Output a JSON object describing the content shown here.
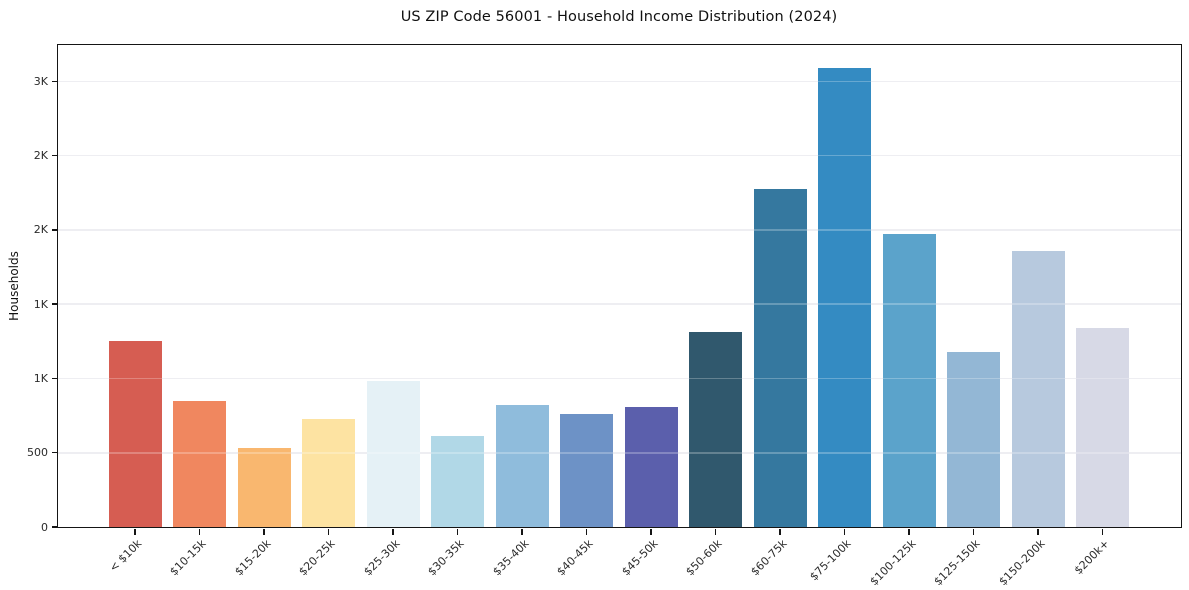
{
  "chart_data": {
    "type": "bar",
    "title": "US ZIP Code 56001 - Household Income Distribution (2024)",
    "xlabel": "",
    "ylabel": "Households",
    "categories": [
      "< $10k",
      "$10-15k",
      "$15-20k",
      "$20-25k",
      "$25-30k",
      "$30-35k",
      "$35-40k",
      "$40-45k",
      "$45-50k",
      "$50-60k",
      "$60-75k",
      "$75-100k",
      "$100-125k",
      "$125-150k",
      "$150-200k",
      "$200k+"
    ],
    "values": [
      1250,
      850,
      535,
      725,
      980,
      615,
      820,
      760,
      805,
      1310,
      2275,
      3090,
      1975,
      1175,
      1855,
      1340
    ],
    "bar_colors": [
      "#d65d52",
      "#f0875f",
      "#f9b76f",
      "#fde3a2",
      "#e5f1f6",
      "#b1d8e7",
      "#8fbcdc",
      "#6d92c6",
      "#5b5fac",
      "#30586d",
      "#35789f",
      "#348bc2",
      "#5ba3cb",
      "#93b7d5",
      "#b7c9de",
      "#d7d9e6"
    ],
    "y_ticks": [
      {
        "value": 0,
        "label": "0"
      },
      {
        "value": 500,
        "label": "500"
      },
      {
        "value": 1000,
        "label": "1K"
      },
      {
        "value": 1500,
        "label": "1K"
      },
      {
        "value": 2000,
        "label": "2K"
      },
      {
        "value": 2500,
        "label": "2K"
      },
      {
        "value": 3000,
        "label": "3K"
      }
    ],
    "ylim": [
      0,
      3245
    ],
    "grid": "horizontal",
    "legend": "none",
    "x_tick_rotation": 45
  }
}
